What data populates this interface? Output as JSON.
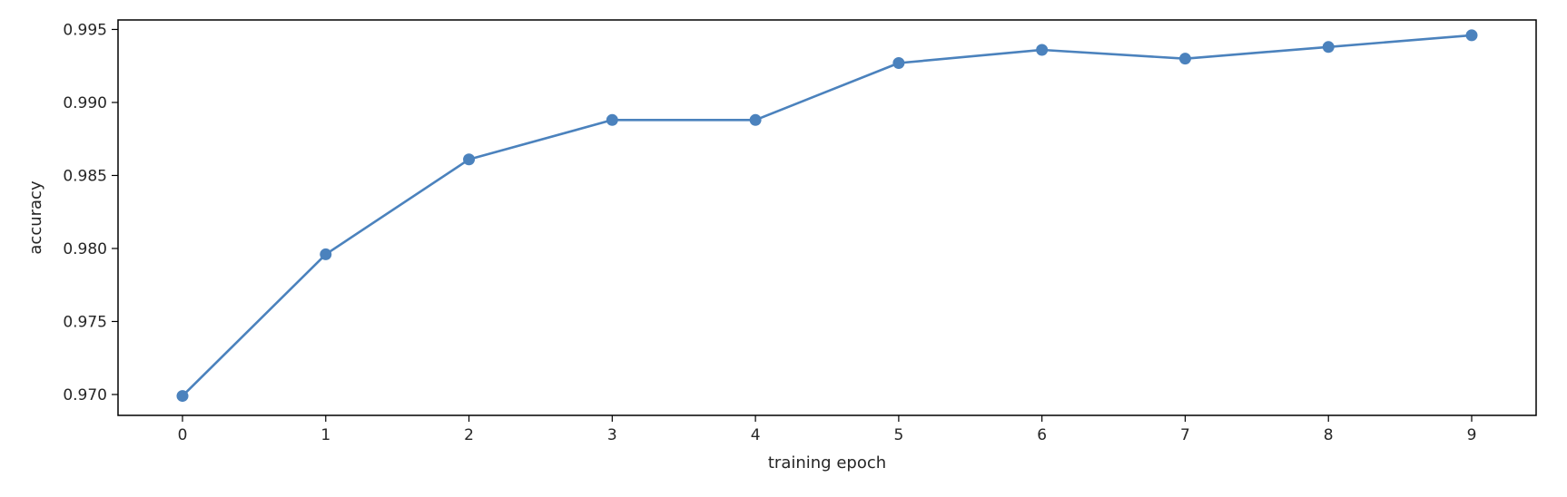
{
  "chart_data": {
    "type": "line",
    "title": "",
    "xlabel": "training epoch",
    "ylabel": "accuracy",
    "x": [
      0,
      1,
      2,
      3,
      4,
      5,
      6,
      7,
      8,
      9
    ],
    "series": [
      {
        "values": [
          0.9699,
          0.9796,
          0.9861,
          0.9888,
          0.9888,
          0.9927,
          0.9936,
          0.993,
          0.9938,
          0.9946
        ],
        "color": "#4b82bd",
        "marker": "circle"
      }
    ],
    "xticks": [
      "0",
      "1",
      "2",
      "3",
      "4",
      "5",
      "6",
      "7",
      "8",
      "9"
    ],
    "yticks": [
      "0.970",
      "0.975",
      "0.980",
      "0.985",
      "0.990",
      "0.995"
    ],
    "xlim": [
      -0.45,
      9.45
    ],
    "ylim": [
      0.96857,
      0.99565
    ],
    "grid": false,
    "legend": "none"
  }
}
